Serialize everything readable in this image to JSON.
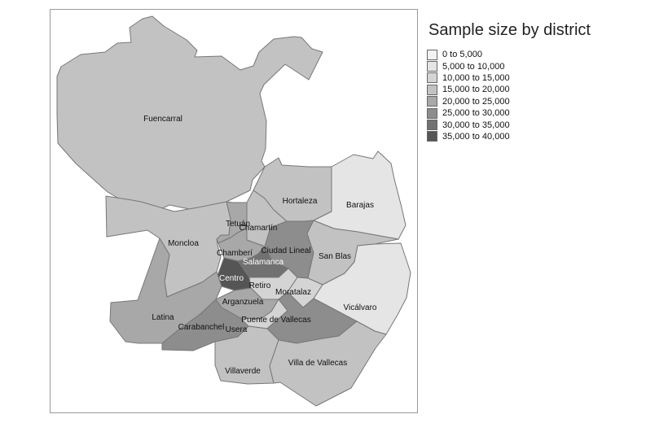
{
  "title": "Sample size by district",
  "legend": [
    {
      "label": "0 to 5,000",
      "color": "#f2f2f2"
    },
    {
      "label": "5,000 to 10,000",
      "color": "#e5e5e5"
    },
    {
      "label": "10,000 to 15,000",
      "color": "#d4d4d4"
    },
    {
      "label": "15,000 to 20,000",
      "color": "#c2c2c2"
    },
    {
      "label": "20,000 to 25,000",
      "color": "#a8a8a8"
    },
    {
      "label": "25,000 to 30,000",
      "color": "#8d8d8d"
    },
    {
      "label": "30,000 to 35,000",
      "color": "#717171"
    },
    {
      "label": "35,000 to 40,000",
      "color": "#555555"
    }
  ],
  "districts": [
    {
      "name": "Fuencarral",
      "bin": 3
    },
    {
      "name": "Hortaleza",
      "bin": 3
    },
    {
      "name": "Barajas",
      "bin": 1
    },
    {
      "name": "Moncloa",
      "bin": 3
    },
    {
      "name": "Tetuán",
      "bin": 4
    },
    {
      "name": "Chamartín",
      "bin": 3
    },
    {
      "name": "Ciudad Lineal",
      "bin": 5
    },
    {
      "name": "Chamberí",
      "bin": 4
    },
    {
      "name": "Salamanca",
      "bin": 6
    },
    {
      "name": "Centro",
      "bin": 7
    },
    {
      "name": "Retiro",
      "bin": 2
    },
    {
      "name": "San Blas",
      "bin": 3
    },
    {
      "name": "Moratalaz",
      "bin": 2
    },
    {
      "name": "Vicálvaro",
      "bin": 1
    },
    {
      "name": "Arganzuela",
      "bin": 4
    },
    {
      "name": "Latina",
      "bin": 4
    },
    {
      "name": "Carabanchel",
      "bin": 5
    },
    {
      "name": "Usera",
      "bin": 2
    },
    {
      "name": "Puente de Vallecas",
      "bin": 5
    },
    {
      "name": "Villaverde",
      "bin": 3
    },
    {
      "name": "Villa de Vallecas",
      "bin": 3
    }
  ]
}
